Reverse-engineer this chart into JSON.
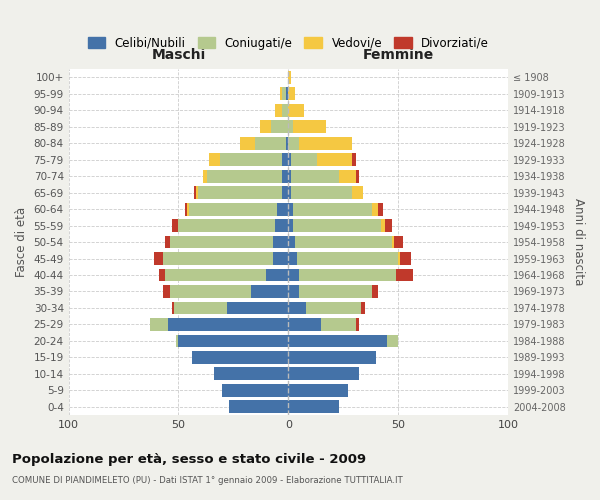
{
  "age_groups": [
    "0-4",
    "5-9",
    "10-14",
    "15-19",
    "20-24",
    "25-29",
    "30-34",
    "35-39",
    "40-44",
    "45-49",
    "50-54",
    "55-59",
    "60-64",
    "65-69",
    "70-74",
    "75-79",
    "80-84",
    "85-89",
    "90-94",
    "95-99",
    "100+"
  ],
  "birth_years": [
    "2004-2008",
    "1999-2003",
    "1994-1998",
    "1989-1993",
    "1984-1988",
    "1979-1983",
    "1974-1978",
    "1969-1973",
    "1964-1968",
    "1959-1963",
    "1954-1958",
    "1949-1953",
    "1944-1948",
    "1939-1943",
    "1934-1938",
    "1929-1933",
    "1924-1928",
    "1919-1923",
    "1914-1918",
    "1909-1913",
    "≤ 1908"
  ],
  "males": {
    "celibi": [
      27,
      30,
      34,
      44,
      50,
      55,
      28,
      17,
      10,
      7,
      7,
      6,
      5,
      3,
      3,
      3,
      1,
      0,
      0,
      1,
      0
    ],
    "coniugati": [
      0,
      0,
      0,
      0,
      1,
      8,
      24,
      37,
      46,
      50,
      47,
      44,
      40,
      38,
      34,
      28,
      14,
      8,
      3,
      2,
      0
    ],
    "vedovi": [
      0,
      0,
      0,
      0,
      0,
      0,
      0,
      0,
      0,
      0,
      0,
      0,
      1,
      1,
      2,
      5,
      7,
      5,
      3,
      1,
      0
    ],
    "divorziati": [
      0,
      0,
      0,
      0,
      0,
      0,
      1,
      3,
      3,
      4,
      2,
      3,
      1,
      1,
      0,
      0,
      0,
      0,
      0,
      0,
      0
    ]
  },
  "females": {
    "nubili": [
      23,
      27,
      32,
      40,
      45,
      15,
      8,
      5,
      5,
      4,
      3,
      2,
      2,
      1,
      1,
      1,
      0,
      0,
      0,
      0,
      0
    ],
    "coniugate": [
      0,
      0,
      0,
      0,
      5,
      16,
      25,
      33,
      44,
      46,
      44,
      40,
      36,
      28,
      22,
      12,
      5,
      2,
      0,
      0,
      0
    ],
    "vedove": [
      0,
      0,
      0,
      0,
      0,
      0,
      0,
      0,
      0,
      1,
      1,
      2,
      3,
      5,
      8,
      16,
      24,
      15,
      7,
      3,
      1
    ],
    "divorziate": [
      0,
      0,
      0,
      0,
      0,
      1,
      2,
      3,
      8,
      5,
      4,
      3,
      2,
      0,
      1,
      2,
      0,
      0,
      0,
      0,
      0
    ]
  },
  "colors": {
    "celibi": "#4472a8",
    "coniugati": "#b5c98e",
    "vedovi": "#f5c842",
    "divorziati": "#c0392b"
  },
  "xlim": 100,
  "title": "Popolazione per età, sesso e stato civile - 2009",
  "subtitle": "COMUNE DI PIANDIMELETO (PU) - Dati ISTAT 1° gennaio 2009 - Elaborazione TUTTITALIA.IT",
  "xlabel_left": "Maschi",
  "xlabel_right": "Femmine",
  "ylabel_left": "Fasce di età",
  "ylabel_right": "Anni di nascita",
  "bg_color": "#f0f0eb",
  "plot_bg": "#ffffff"
}
